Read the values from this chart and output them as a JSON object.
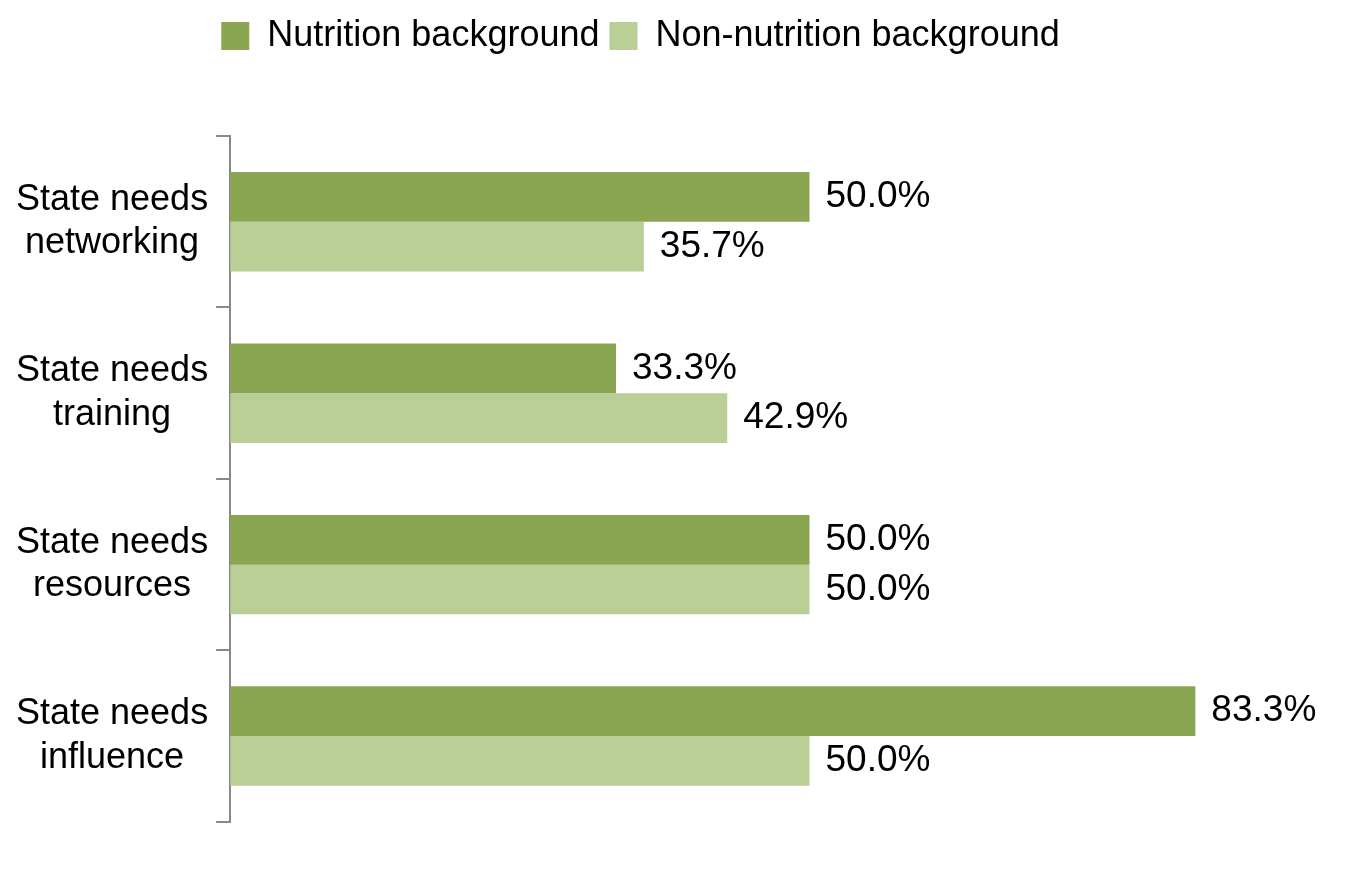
{
  "chart_data": {
    "type": "bar",
    "orientation": "horizontal",
    "legend": "top",
    "categories": [
      "State needs networking",
      "State needs training",
      "State needs resources",
      "State needs influence"
    ],
    "series": [
      {
        "name": "Nutrition background",
        "color": "#8aa650",
        "values": [
          50.0,
          33.3,
          50.0,
          83.3
        ],
        "value_labels": [
          "50.0%",
          "33.3%",
          "50.0%",
          "83.3%"
        ]
      },
      {
        "name": "Non-nutrition background",
        "color": "#b9cf96",
        "values": [
          35.7,
          42.9,
          50.0,
          50.0
        ],
        "value_labels": [
          "35.7%",
          "42.9%",
          "50.0%",
          "50.0%"
        ]
      }
    ]
  }
}
